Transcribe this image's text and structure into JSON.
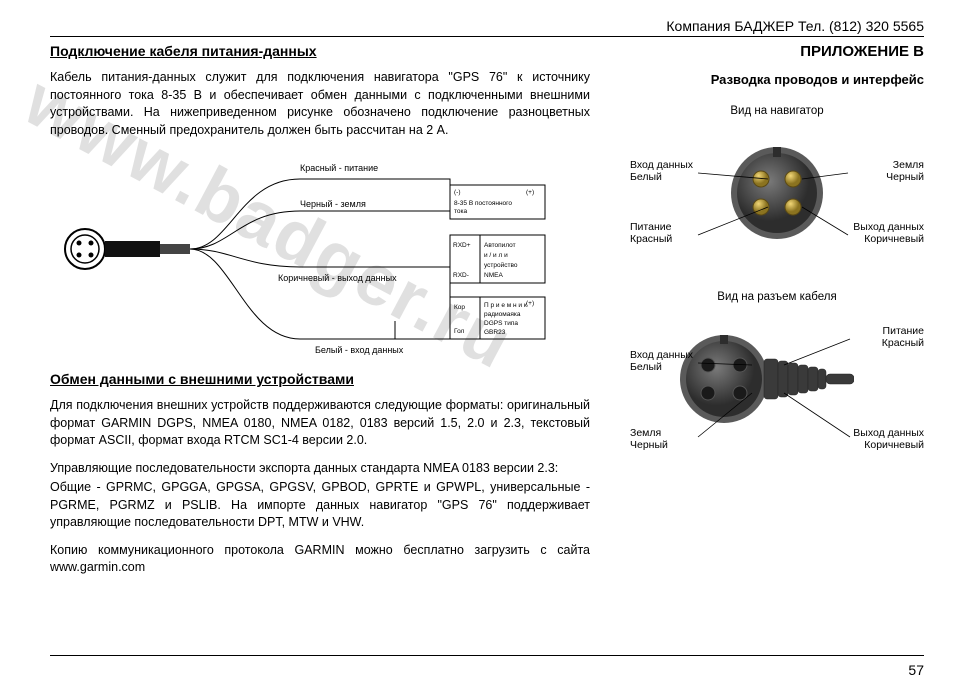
{
  "header": {
    "company": "Компания БАДЖЕР  Тел. (812) 320 5565"
  },
  "left": {
    "title1": "Подключение кабеля питания-данных",
    "para1": "Кабель питания-данных служит для подключения навигатора \"GPS 76\" к источнику постоянного тока 8-35 В и обеспечивает обмен данными с подключенными внешними устройствами. На нижеприведенном рисунке обозначено подключение разноцветных проводов. Сменный предохранитель должен быть рассчитан на 2 А.",
    "title2": "Обмен данными с внешними устройствами",
    "para2": "Для подключения внешних устройств поддерживаются следующие форматы: оригинальный формат GARMIN DGPS, NMEA 0180, NMEA 0182, 0183 версий 1.5, 2.0 и 2.3, текстовый формат ASCII, формат входа RTCM SC1-4 версии 2.0.",
    "para3": "Управляющие последовательности экспорта данных стандарта NMEA 0183 версии 2.3:",
    "para4": "Общие - GPRMC, GPGGA, GPGSA, GPGSV, GPBOD, GPRTE и GPWPL, универсальные - PGRME, PGRMZ и PSLIB. На импорте данных навигатор \"GPS 76\" поддерживает управляющие последовательности DPT, MTW и VHW.",
    "para5": "Копию коммуникационного протокола GARMIN можно бесплатно загрузить с сайта www.garmin.com"
  },
  "right": {
    "appendix": "ПРИЛОЖЕНИЕ В",
    "subtitle": "Разводка проводов и интерфейс",
    "view1_title": "Вид на навигатор",
    "view2_title": "Вид на разъем кабеля",
    "pins_nav": {
      "data_in": "Вход данных\nБелый",
      "ground": "Земля\nЧерный",
      "power": "Питание\nКрасный",
      "data_out": "Выход данных\nКоричневый"
    },
    "pins_cable": {
      "data_in": "Вход данных\nБелый",
      "power": "Питание\nКрасный",
      "ground": "Земля\nЧерный",
      "data_out": "Выход данных\nКоричневый"
    }
  },
  "diagram": {
    "wire_red": "Красный - питание",
    "wire_black": "Черный - земля",
    "wire_brown": "Коричневый - выход данных",
    "wire_white": "Белый - вход данных",
    "box1_l1": "(-)",
    "box1_l2": "8-35 В постоянного",
    "box1_l3": "тока",
    "box1_plus": "(+)",
    "box2_l1": "RXD+",
    "box2_l2": "RXD-",
    "box2_r1": "Автопилот",
    "box2_r2": "и / и л и",
    "box2_r3": "устройство",
    "box2_r4": "NMEA",
    "box3_l1": "Кор",
    "box3_l2": "Гол",
    "box3_r1": "П р и е м н и к",
    "box3_r2": "радиомаяка",
    "box3_r3": "DGPS    типа",
    "box3_r4": "GBR23"
  },
  "watermark": "www.badger.ru",
  "page_number": "57",
  "colors": {
    "line": "#000000",
    "connector_body": "#4a4a4a",
    "connector_ring": "#6a6a6a",
    "pin_gold": "#cfae3a",
    "pin_gold_dark": "#8b7320"
  }
}
